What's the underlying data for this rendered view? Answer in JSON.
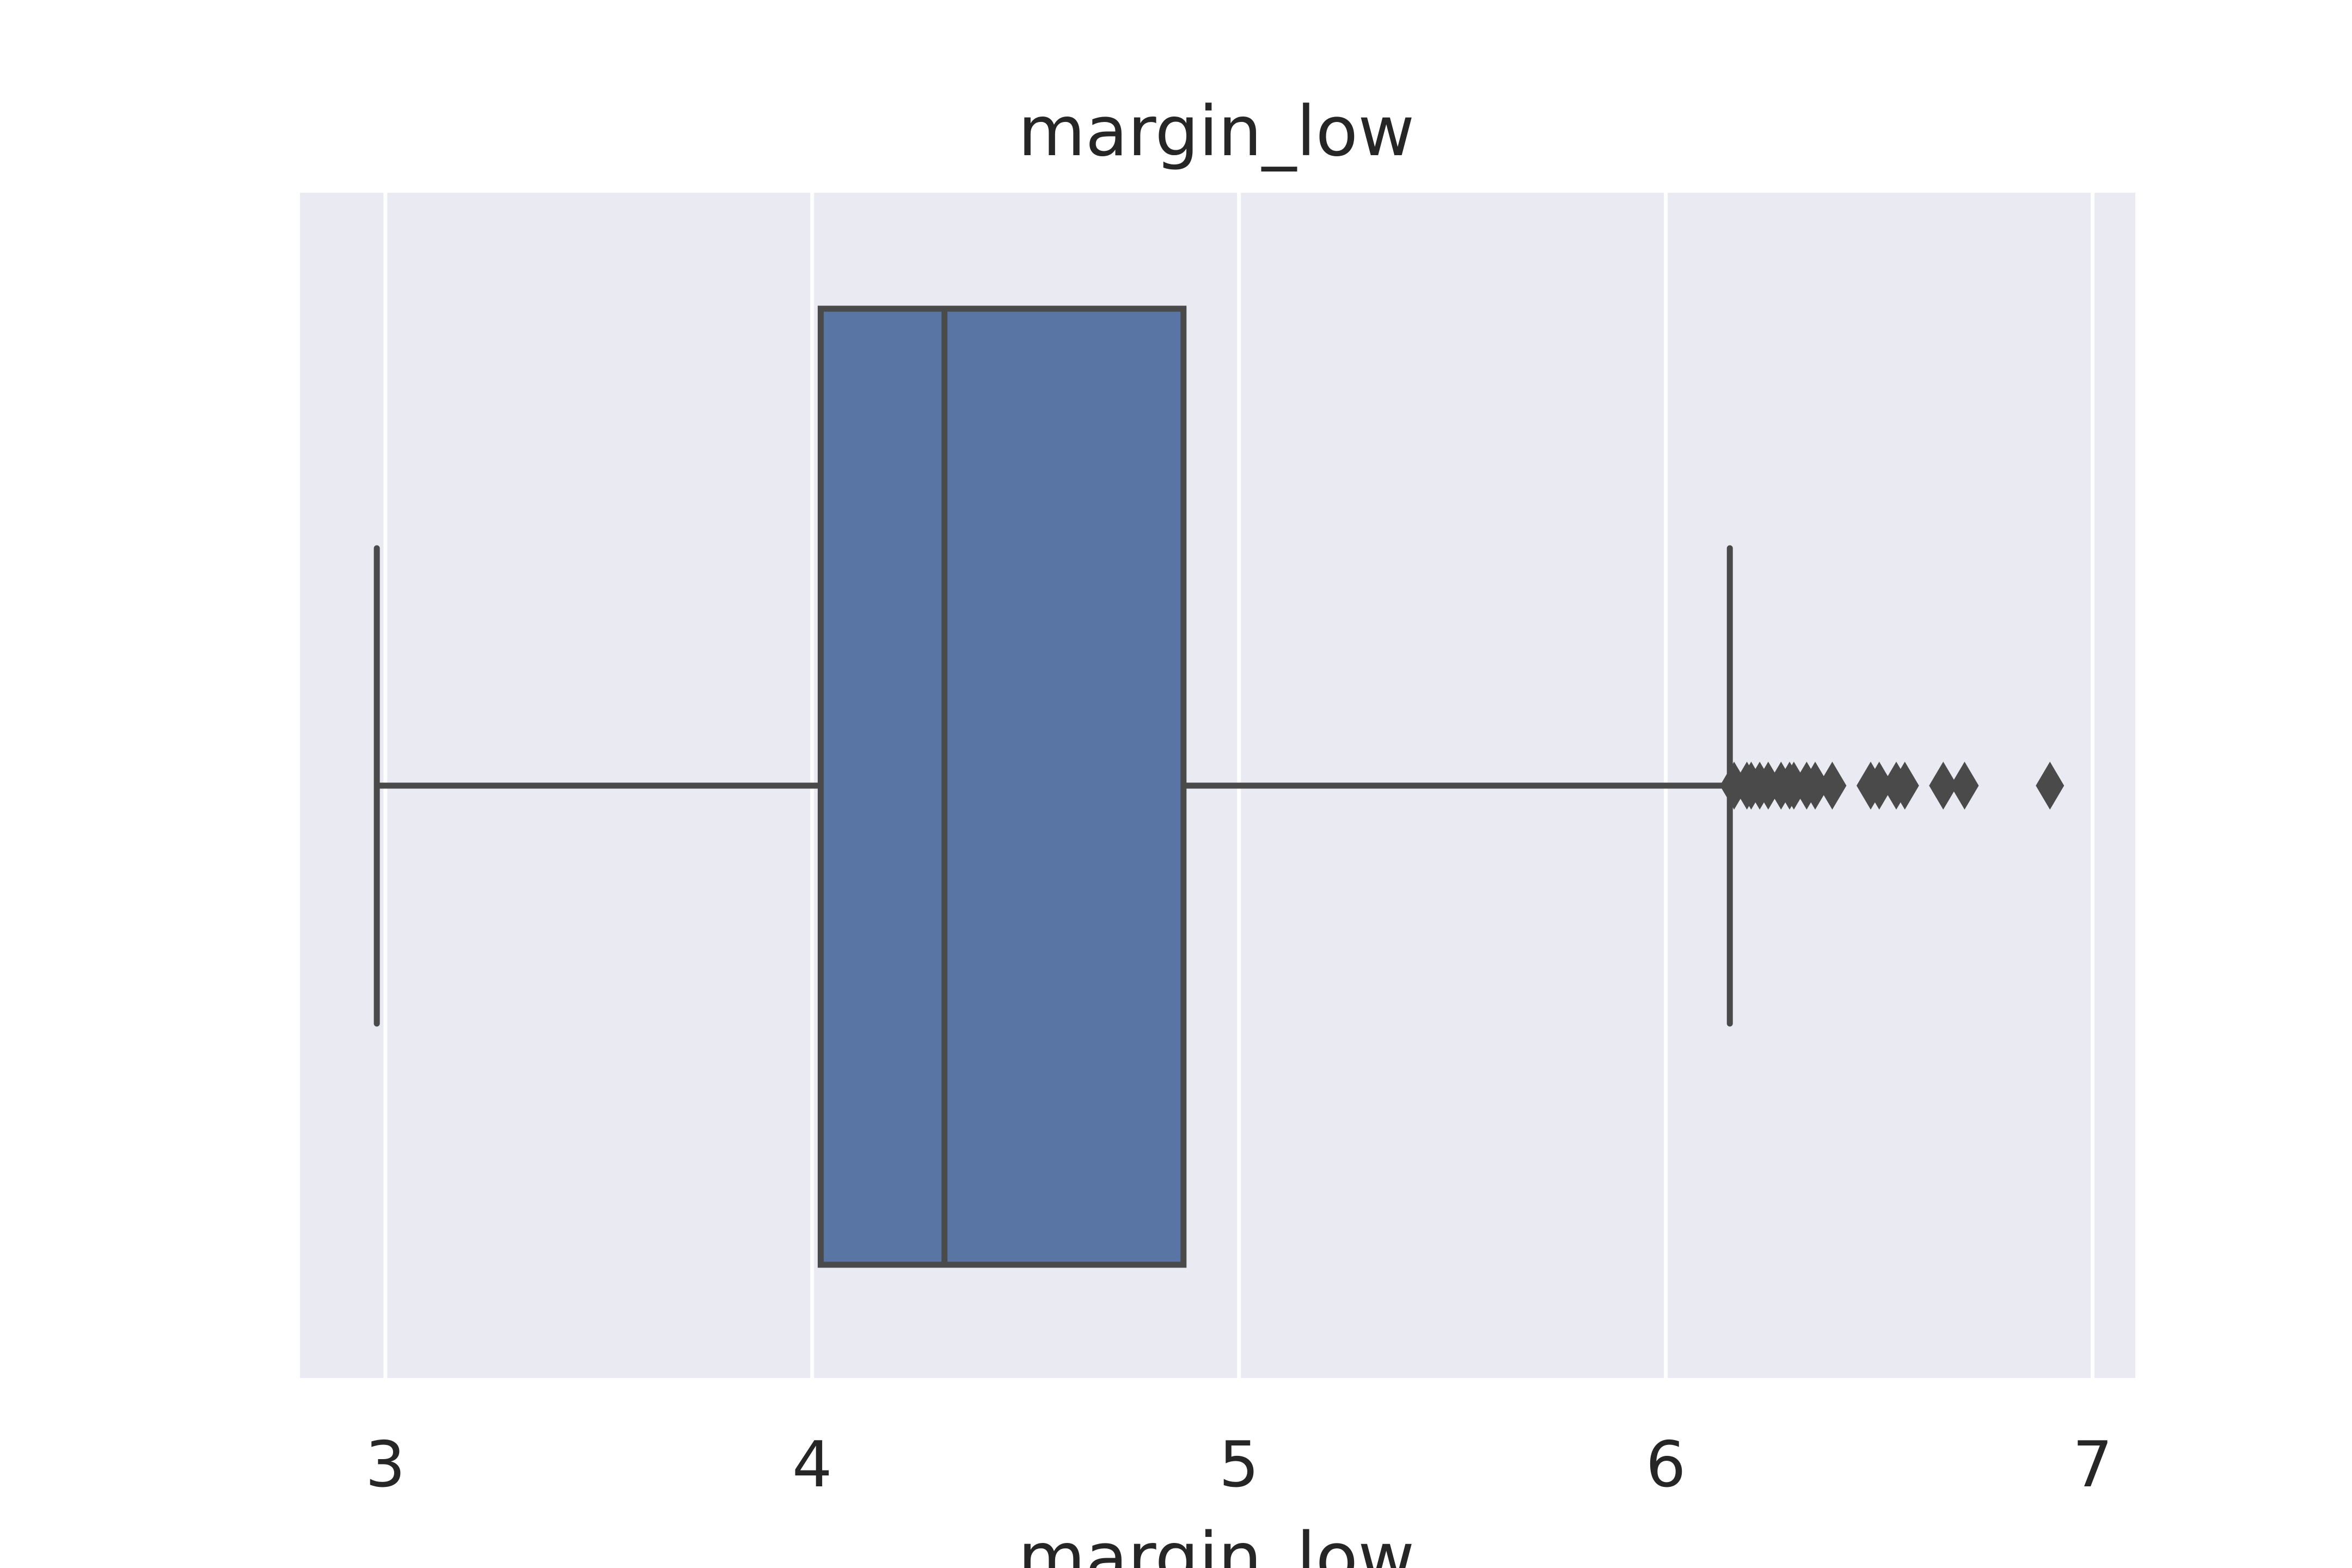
{
  "chart_data": {
    "type": "box",
    "title": "margin_low",
    "xlabel": "margin_low",
    "ylabel": "",
    "xlim": [
      2.8,
      7.1
    ],
    "xticks": [
      3,
      4,
      5,
      6,
      7
    ],
    "xtick_labels": [
      "3",
      "4",
      "5",
      "6",
      "7"
    ],
    "grid": true,
    "orientation": "horizontal",
    "box": {
      "whisker_low": 2.98,
      "q1": 4.02,
      "median": 4.31,
      "q3": 4.87,
      "whisker_high": 6.15
    },
    "outliers": [
      6.16,
      6.19,
      6.2,
      6.22,
      6.24,
      6.27,
      6.29,
      6.3,
      6.33,
      6.35,
      6.39,
      6.48,
      6.5,
      6.54,
      6.56,
      6.65,
      6.7,
      6.9
    ],
    "colors": {
      "plot_background": "#EAEAF2",
      "grid": "#FFFFFF",
      "box_fill": "#5975A4",
      "line": "#4A4A4A",
      "text": "#262626"
    }
  }
}
